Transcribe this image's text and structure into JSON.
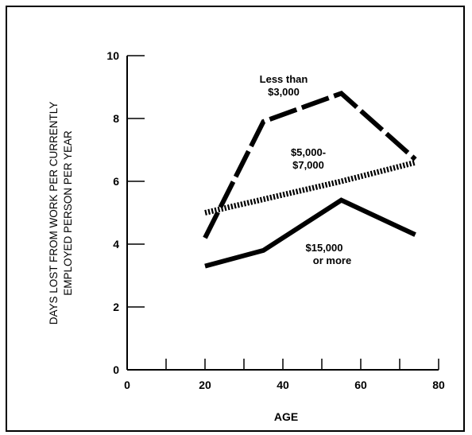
{
  "chart_data": {
    "type": "line",
    "xlabel": "AGE",
    "ylabel_lines": [
      "DAYS LOST FROM WORK PER CURRENTLY",
      "EMPLOYED PERSON PER YEAR"
    ],
    "xlim": [
      0,
      80
    ],
    "ylim": [
      0,
      10
    ],
    "x_ticks": [
      0,
      20,
      40,
      60,
      80
    ],
    "y_ticks": [
      0,
      2,
      4,
      6,
      8,
      10
    ],
    "grid": false,
    "series": [
      {
        "name": "Less than $3,000",
        "label_lines": [
          "Less than",
          "$3,000"
        ],
        "style": "dashed",
        "points": [
          [
            20,
            4.2
          ],
          [
            35,
            7.9
          ],
          [
            55,
            8.8
          ],
          [
            74,
            6.7
          ]
        ]
      },
      {
        "name": "$5,000-$7,000",
        "label_lines": [
          "$5,000-",
          "$7,000"
        ],
        "style": "dotted",
        "points": [
          [
            20,
            5.0
          ],
          [
            55,
            6.0
          ],
          [
            74,
            6.6
          ]
        ]
      },
      {
        "name": "$15,000 or more",
        "label_lines": [
          "$15,000",
          "or more"
        ],
        "style": "solid",
        "points": [
          [
            20,
            3.3
          ],
          [
            35,
            3.8
          ],
          [
            55,
            5.4
          ],
          [
            74,
            4.3
          ]
        ]
      }
    ]
  }
}
